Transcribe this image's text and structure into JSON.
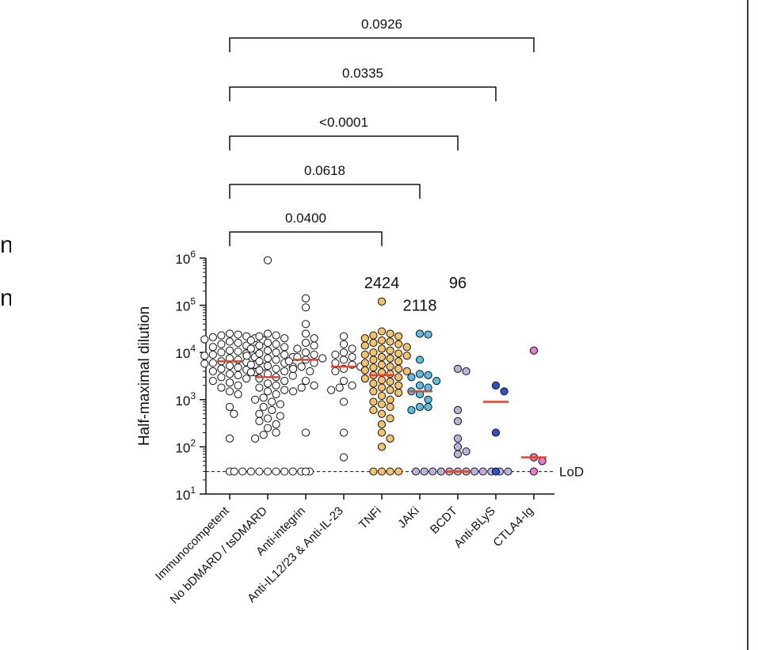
{
  "edge_text": [
    "n",
    "n"
  ],
  "chart_data": {
    "type": "scatter",
    "yscale": "log",
    "ylabel": "Half-maximal dilution",
    "ylim": [
      10,
      1000000
    ],
    "yticks": [
      {
        "value": 10,
        "base": "10",
        "exp": "1"
      },
      {
        "value": 100,
        "base": "10",
        "exp": "2"
      },
      {
        "value": 1000,
        "base": "10",
        "exp": "3"
      },
      {
        "value": 10000,
        "base": "10",
        "exp": "4"
      },
      {
        "value": 100000,
        "base": "10",
        "exp": "5"
      },
      {
        "value": 1000000,
        "base": "10",
        "exp": "6"
      }
    ],
    "lod": {
      "value": 30,
      "label": "LoD"
    },
    "median_color": "#e8402a",
    "categories": [
      {
        "label": "Immunocompetent",
        "color": "#ffffff",
        "median": 6500,
        "values": [
          25000,
          24000,
          23000,
          22000,
          21000,
          20000,
          19000,
          18000,
          17000,
          16000,
          15000,
          14000,
          13000,
          12000,
          11000,
          10500,
          10000,
          9500,
          9000,
          8500,
          8000,
          7500,
          7000,
          6500,
          6200,
          6000,
          5800,
          5500,
          5200,
          5000,
          4800,
          4500,
          4300,
          4000,
          3800,
          3500,
          3300,
          3000,
          2800,
          2500,
          2300,
          2000,
          1800,
          1500,
          1300,
          700,
          500,
          150,
          30
        ]
      },
      {
        "label": "No bDMARD / tsDMARD",
        "color": "#ffffff",
        "median": 3000,
        "values": [
          900000,
          25000,
          23000,
          22000,
          20000,
          18000,
          16000,
          15000,
          14000,
          13000,
          12000,
          11000,
          10000,
          9500,
          9000,
          8500,
          8000,
          7500,
          7000,
          6500,
          6000,
          5500,
          5200,
          5000,
          4500,
          4200,
          4000,
          3800,
          3500,
          3200,
          3000,
          2800,
          2500,
          2200,
          2000,
          1800,
          1600,
          1500,
          1300,
          1100,
          1000,
          900,
          800,
          700,
          600,
          500,
          450,
          400,
          350,
          300,
          250,
          200,
          180,
          150,
          30,
          30,
          30,
          30,
          30,
          30,
          30,
          30,
          30,
          30
        ]
      },
      {
        "label": "Anti-integrin",
        "color": "#ffffff",
        "median": 7000,
        "values": [
          140000,
          90000,
          40000,
          25000,
          20000,
          16000,
          14000,
          12000,
          10000,
          9000,
          8000,
          7500,
          7000,
          6500,
          6000,
          5000,
          4500,
          4000,
          2500,
          2000,
          1800,
          1500,
          200,
          30
        ]
      },
      {
        "label": "Anti-IL12/23 & Anti-IL-23",
        "color": "#ffffff",
        "median": 5000,
        "values": [
          22000,
          15000,
          12000,
          10000,
          9000,
          8000,
          7000,
          6000,
          5500,
          5000,
          4500,
          4000,
          2500,
          2000,
          1800,
          1600,
          900,
          200,
          60
        ]
      },
      {
        "label": "TNFi",
        "color": "#f2c36b",
        "median": 3300,
        "values": [
          120000,
          28000,
          25000,
          23000,
          22000,
          20000,
          18000,
          17000,
          16000,
          15000,
          14000,
          13000,
          12000,
          11000,
          10000,
          9500,
          9000,
          8500,
          8000,
          7500,
          7000,
          6500,
          6000,
          5500,
          5000,
          4800,
          4500,
          4200,
          4000,
          3800,
          3500,
          3300,
          3000,
          2800,
          2600,
          2400,
          2200,
          2000,
          1800,
          1600,
          1500,
          1400,
          1200,
          1000,
          900,
          800,
          700,
          600,
          500,
          400,
          300,
          200,
          150,
          100,
          30,
          30,
          30,
          30
        ]
      },
      {
        "label": "JAKi",
        "color": "#5bbce4",
        "median": 1500,
        "values": [
          25000,
          24000,
          7000,
          3500,
          3300,
          3000,
          2500,
          2000,
          1800,
          1500,
          1300,
          1000,
          700,
          700,
          600
        ]
      },
      {
        "label": "BCDT",
        "color": "#b8b4de",
        "median": 30,
        "values": [
          4500,
          4000,
          600,
          350,
          150,
          100,
          80,
          70,
          30,
          30,
          30,
          30,
          30,
          30,
          30,
          30,
          30,
          30,
          30,
          30
        ]
      },
      {
        "label": "Anti-BLyS",
        "color": "#2f4fcf",
        "median": 900,
        "values": [
          2000,
          1500,
          200,
          30
        ]
      },
      {
        "label": "CTLA4-Ig",
        "color": "#e87cc6",
        "median": 60,
        "values": [
          11000,
          60,
          50,
          30
        ]
      }
    ],
    "group_counts": [
      {
        "category": 4,
        "text": "2424",
        "y_value": 300000
      },
      {
        "category": 5,
        "text": "2118",
        "y_value": 100000
      },
      {
        "category": 6,
        "text": "96",
        "y_value": 300000
      }
    ],
    "comparisons": [
      {
        "from": 0,
        "to": 8,
        "p": "0.0926"
      },
      {
        "from": 0,
        "to": 7,
        "p": "0.0335"
      },
      {
        "from": 0,
        "to": 6,
        "p": "<0.0001"
      },
      {
        "from": 0,
        "to": 5,
        "p": "0.0618"
      },
      {
        "from": 0,
        "to": 4,
        "p": "0.0400"
      }
    ]
  }
}
